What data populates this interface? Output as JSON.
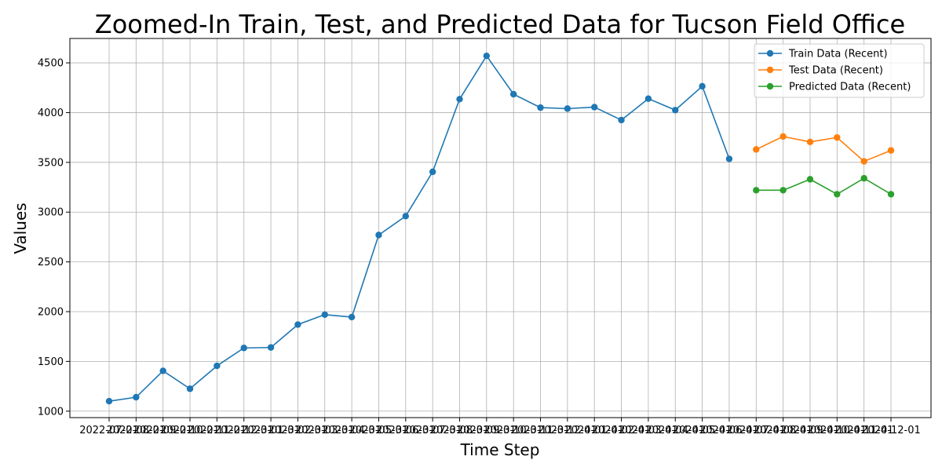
{
  "chart_data": {
    "type": "line",
    "title": "Zoomed-In Train, Test, and Predicted Data for Tucson Field Office",
    "xlabel": "Time Step",
    "ylabel": "Values",
    "ylim": [
      935,
      4745
    ],
    "yticks": [
      1000,
      1500,
      2000,
      2500,
      3000,
      3500,
      4000,
      4500
    ],
    "grid": true,
    "legend_position": "top-right",
    "x": [
      "2022-07-01",
      "2022-08-01",
      "2022-09-01",
      "2022-10-01",
      "2022-11-01",
      "2022-12-01",
      "2023-01-01",
      "2023-02-01",
      "2023-03-01",
      "2023-04-01",
      "2023-05-01",
      "2023-06-01",
      "2023-07-01",
      "2023-08-01",
      "2023-09-01",
      "2023-10-01",
      "2023-11-01",
      "2023-12-01",
      "2024-01-01",
      "2024-02-01",
      "2024-03-01",
      "2024-04-01",
      "2024-05-01",
      "2024-06-01",
      "2024-07-01",
      "2024-08-01",
      "2024-09-01",
      "2024-10-01",
      "2024-11-01",
      "2024-12-01"
    ],
    "series": [
      {
        "name": "Train Data (Recent)",
        "color": "#1f77b4",
        "x": [
          "2022-07-01",
          "2022-08-01",
          "2022-09-01",
          "2022-10-01",
          "2022-11-01",
          "2022-12-01",
          "2023-01-01",
          "2023-02-01",
          "2023-03-01",
          "2023-04-01",
          "2023-05-01",
          "2023-06-01",
          "2023-07-01",
          "2023-08-01",
          "2023-09-01",
          "2023-10-01",
          "2023-11-01",
          "2023-12-01",
          "2024-01-01",
          "2024-02-01",
          "2024-03-01",
          "2024-04-01",
          "2024-05-01",
          "2024-06-01"
        ],
        "values": [
          1100,
          1140,
          1405,
          1225,
          1455,
          1635,
          1640,
          1870,
          1970,
          1945,
          2770,
          2960,
          3405,
          4135,
          4570,
          4185,
          4050,
          4040,
          4055,
          3925,
          4140,
          4025,
          4265,
          3535
        ]
      },
      {
        "name": "Test Data (Recent)",
        "color": "#ff7f0e",
        "x": [
          "2024-07-01",
          "2024-08-01",
          "2024-09-01",
          "2024-10-01",
          "2024-11-01",
          "2024-12-01"
        ],
        "values": [
          3630,
          3760,
          3705,
          3750,
          3510,
          3620
        ]
      },
      {
        "name": "Predicted Data (Recent)",
        "color": "#2ca02c",
        "x": [
          "2024-07-01",
          "2024-08-01",
          "2024-09-01",
          "2024-10-01",
          "2024-11-01",
          "2024-12-01"
        ],
        "values": [
          3220,
          3220,
          3330,
          3180,
          3340,
          3180
        ]
      }
    ]
  }
}
